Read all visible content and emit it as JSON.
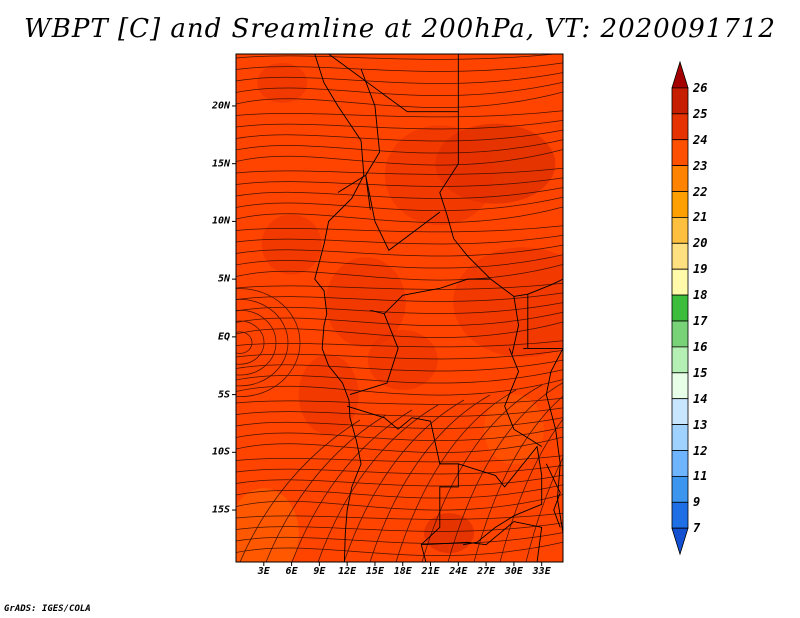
{
  "title": "WBPT [C] and Sreamline at 200hPa, VT: 2020091712",
  "footer": "GrADS: IGES/COLA",
  "lat_labels": [
    "20N",
    "15N",
    "10N",
    "5N",
    "EQ",
    "5S",
    "10S",
    "15S"
  ],
  "lat_values": [
    20,
    15,
    10,
    5,
    0,
    -5,
    -10,
    -15
  ],
  "lon_labels": [
    "3E",
    "6E",
    "9E",
    "12E",
    "15E",
    "18E",
    "21E",
    "24E",
    "27E",
    "30E",
    "33E"
  ],
  "lon_values": [
    3,
    6,
    9,
    12,
    15,
    18,
    21,
    24,
    27,
    30,
    33
  ],
  "colorbar": {
    "labels": [
      "26",
      "25",
      "24",
      "23",
      "22",
      "21",
      "20",
      "19",
      "18",
      "17",
      "16",
      "15",
      "14",
      "13",
      "12",
      "11",
      "9",
      "7"
    ],
    "colors": [
      "#a50000",
      "#c81e00",
      "#e63200",
      "#ff5000",
      "#ff8200",
      "#ffa000",
      "#ffc040",
      "#ffe080",
      "#fffaaa",
      "#3cbe3c",
      "#78d278",
      "#b4f0b4",
      "#e6ffe6",
      "#c8e6ff",
      "#a0d2ff",
      "#6eb4ff",
      "#3c96f0",
      "#1e6ee6",
      "#1450d2"
    ]
  },
  "map_colors": {
    "base": "#ff4400",
    "warm": "#e83200",
    "warmest": "#d22800",
    "cool": "#ff5a00",
    "south": "#ff6a00"
  }
}
